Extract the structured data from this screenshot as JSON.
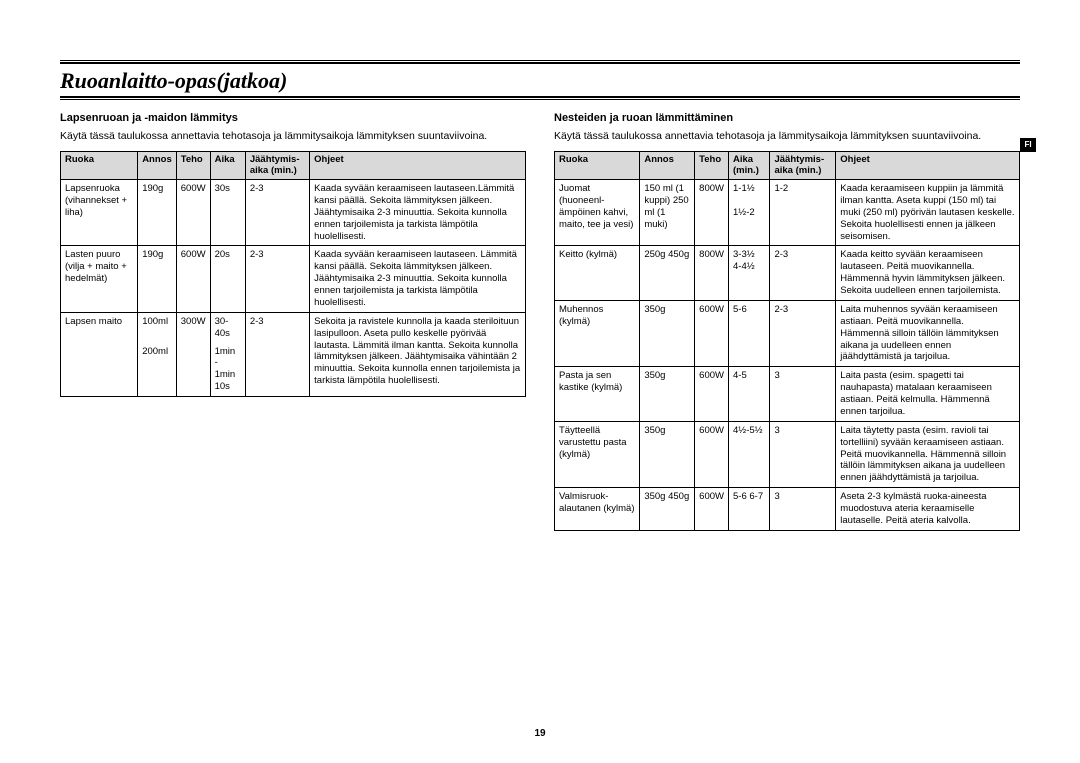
{
  "page_title": "Ruoanlaitto-opas(jatkoa)",
  "lang_tab": "FI",
  "page_number": "19",
  "left": {
    "heading": "Lapsenruoan ja -maidon lämmitys",
    "intro": "Käytä tässä taulukossa annettavia tehotasoja ja lämmitysaikoja lämmityksen suuntaviivoina.",
    "columns": {
      "c0": "Ruoka",
      "c1": "Annos",
      "c2": "Teho",
      "c3": "Aika",
      "c4": "Jäähtymis-aika (min.)",
      "c5": "Ohjeet"
    },
    "rows": [
      {
        "c0": "Lapsenruoka (vihannekset + liha)",
        "c1": "190g",
        "c2": "600W",
        "c3": "30s",
        "c4": "2-3",
        "c5": "Kaada syvään keraamiseen lautaseen.Lämmitä kansi päällä. Sekoita lämmityksen jälkeen. Jäähtymisaika 2-3 minuuttia. Sekoita kunnolla ennen tarjoilemista ja tarkista lämpötila huolellisesti."
      },
      {
        "c0": "Lasten puuro (vilja + maito + hedelmät)",
        "c1": "190g",
        "c2": "600W",
        "c3": "20s",
        "c4": "2-3",
        "c5": "Kaada syvään keraamiseen lautaseen. Lämmitä kansi päällä. Sekoita lämmityksen jälkeen. Jäähtymisaika 2-3 minuuttia. Sekoita kunnolla ennen tarjoilemista ja tarkista lämpötila huolellisesti."
      },
      {
        "c0": "Lapsen maito",
        "c1": "100ml",
        "c2": "300W",
        "c3": "30-40s",
        "c4": "2-3",
        "c5": "Sekoita ja ravistele kunnolla ja kaada steriloituun lasipulloon. Aseta pullo keskelle pyörivää lautasta. Lämmitä ilman kantta. Sekoita kunnolla lämmityksen jälkeen. Jäähtymisaika vähintään 2 minuuttia. Sekoita kunnolla ennen tarjoilemista ja tarkista lämpötila huolellisesti."
      },
      {
        "c0": "",
        "c1": "200ml",
        "c2": "",
        "c3": "1min - 1min 10s",
        "c4": "",
        "c5": ""
      }
    ]
  },
  "right": {
    "heading": "Nesteiden ja ruoan lämmittäminen",
    "intro": "Käytä tässä taulukossa annettavia tehotasoja ja lämmitysaikoja lämmityksen suuntaviivoina.",
    "columns": {
      "c0": "Ruoka",
      "c1": "Annos",
      "c2": "Teho",
      "c3": "Aika (min.)",
      "c4": "Jäähtymis-aika (min.)",
      "c5": "Ohjeet"
    },
    "rows": [
      {
        "c0": "Juomat (huoneenl-ämpöinen kahvi, maito, tee ja vesi)",
        "c1": "150 ml (1 kuppi) 250 ml (1 muki)",
        "c2": "800W",
        "c3": "1-1½\n\n1½-2",
        "c4": "1-2",
        "c5": "Kaada keraamiseen kuppiin ja lämmitä ilman kantta. Aseta kuppi (150 ml) tai muki (250 ml) pyörivän lautasen keskelle. Sekoita huolellisesti ennen ja jälkeen seisomisen."
      },
      {
        "c0": "Keitto (kylmä)",
        "c1": "250g 450g",
        "c2": "800W",
        "c3": "3-3½ 4-4½",
        "c4": "2-3",
        "c5": "Kaada keitto syvään keraamiseen lautaseen. Peitä muovikannella. Hämmennä hyvin lämmityksen jälkeen. Sekoita uudelleen ennen tarjoilemista."
      },
      {
        "c0": "Muhennos (kylmä)",
        "c1": "350g",
        "c2": "600W",
        "c3": "5-6",
        "c4": "2-3",
        "c5": "Laita muhennos syvään keraamiseen astiaan. Peitä muovikannella. Hämmennä silloin tällöin lämmityksen aikana ja uudelleen ennen jäähdyttämistä ja tarjoilua."
      },
      {
        "c0": "Pasta ja sen kastike (kylmä)",
        "c1": "350g",
        "c2": "600W",
        "c3": "4-5",
        "c4": "3",
        "c5": "Laita pasta (esim. spagetti tai nauhapasta) matalaan keraamiseen astiaan. Peitä kelmulla. Hämmennä ennen tarjoilua."
      },
      {
        "c0": "Täytteellä varustettu pasta (kylmä)",
        "c1": "350g",
        "c2": "600W",
        "c3": "4½-5½",
        "c4": "3",
        "c5": "Laita täytetty pasta (esim. ravioli tai tortelliini) syvään keraamiseen astiaan. Peitä muovikannella. Hämmennä silloin tällöin lämmityksen aikana ja uudelleen ennen jäähdyttämistä ja tarjoilua."
      },
      {
        "c0": "Valmisruok-alautanen (kylmä)",
        "c1": "350g 450g",
        "c2": "600W",
        "c3": "5-6 6-7",
        "c4": "3",
        "c5": "Aseta 2-3 kylmästä ruoka-aineesta muodostuva ateria keraamiselle lautaselle. Peitä ateria kalvolla."
      }
    ]
  }
}
